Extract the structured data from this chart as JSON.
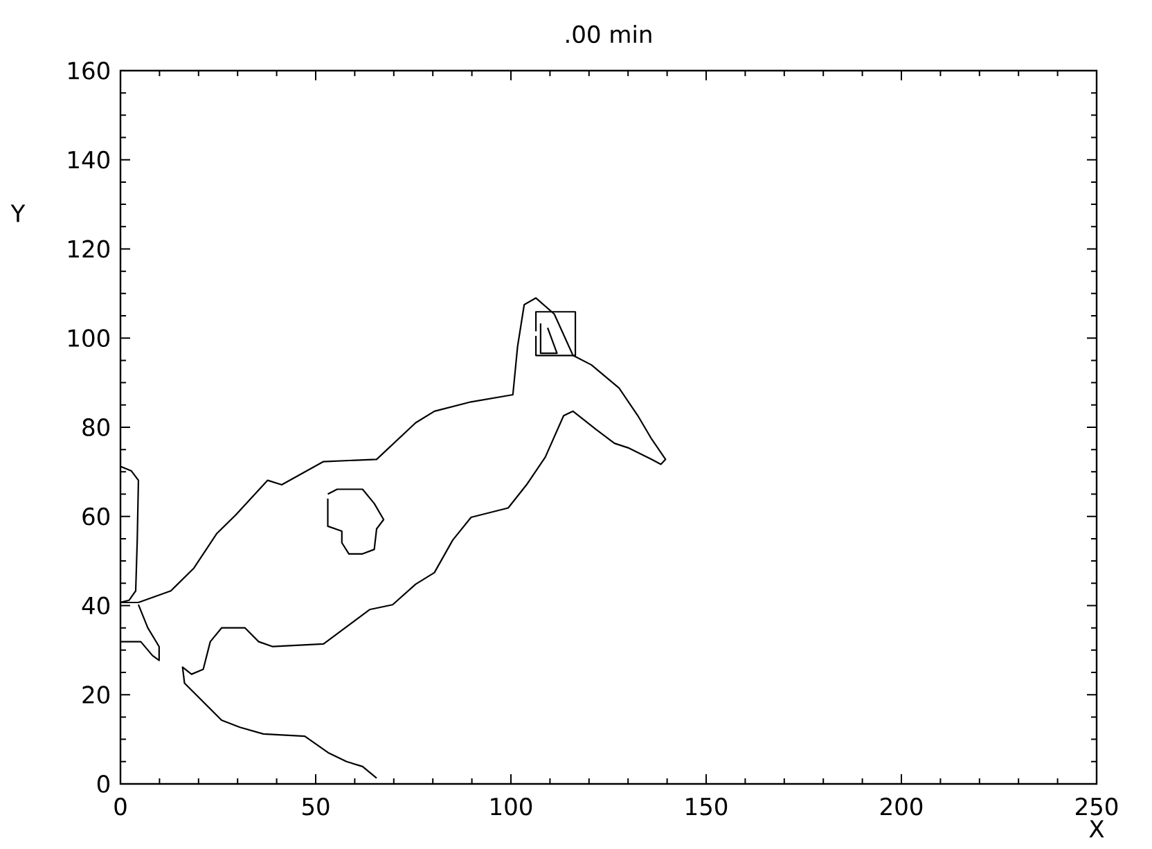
{
  "chart_data": {
    "type": "line",
    "title": ".00 min",
    "xlabel": "X",
    "ylabel": "Y",
    "xlim": [
      0,
      250
    ],
    "ylim": [
      0,
      160
    ],
    "xticks": [
      0,
      50,
      100,
      150,
      200,
      250
    ],
    "yticks": [
      0,
      20,
      40,
      60,
      80,
      100,
      120,
      140,
      160
    ],
    "grid": false,
    "marker": "none",
    "line_style": "solid",
    "series": [
      {
        "color": "#000000",
        "x": [
          0,
          4.6,
          12.9,
          18.8,
          24.7,
          29.5,
          37.7,
          41.3,
          52,
          65.6,
          75.6,
          80.4,
          89.8,
          100.5,
          101.7,
          103.4,
          106.4,
          111.1,
          115.9,
          120.6,
          127.7,
          132.5,
          136,
          139.6,
          138.4,
          136,
          130,
          126.5,
          121.8,
          115.9,
          113.5,
          108.8,
          104,
          99.3,
          89.8,
          85.1,
          80.4,
          75.6,
          69.7,
          63.8,
          52,
          39,
          35.4,
          31.9,
          25.9,
          23,
          21.2,
          18.2,
          15.9,
          16.4,
          21.2,
          25.9,
          30.6,
          36.6,
          47.2,
          53.2,
          57.9,
          62,
          65.6
        ],
        "values": [
          40.7,
          40.7,
          43.3,
          48.4,
          56.2,
          60.3,
          68.1,
          67.1,
          72.3,
          72.8,
          81,
          83.6,
          85.7,
          87.3,
          98.1,
          107.5,
          109,
          105.4,
          96.1,
          94,
          88.8,
          82.6,
          77.4,
          72.8,
          71.7,
          72.8,
          75.4,
          76.4,
          79.5,
          83.6,
          82.6,
          73.3,
          67.1,
          61.9,
          59.8,
          54.7,
          47.4,
          44.8,
          40.2,
          39.1,
          31.4,
          30.8,
          31.9,
          35,
          35,
          31.9,
          25.7,
          24.6,
          26.2,
          22.6,
          18.4,
          14.3,
          12.7,
          11.2,
          10.7,
          7,
          5,
          3.9,
          1.3
        ]
      },
      {
        "color": "#000000",
        "x": [
          0,
          2.8,
          4.6,
          4.3,
          3.9,
          2.2,
          0
        ],
        "values": [
          71.2,
          70.2,
          68.1,
          54.7,
          43.3,
          41.2,
          40.7
        ]
      },
      {
        "color": "#000000",
        "x": [
          0,
          5.2,
          8.2,
          9.9,
          9.9,
          7,
          4.6
        ],
        "values": [
          31.9,
          31.9,
          28.8,
          27.7,
          30.8,
          35,
          40.2
        ]
      },
      {
        "color": "#000000",
        "x": [
          53.1,
          55.5,
          62,
          65,
          67.4,
          65.6,
          65,
          62,
          58.5,
          56.7,
          56.7,
          53.1,
          53.1
        ],
        "values": [
          65,
          66.1,
          66.1,
          62.9,
          59.3,
          57.2,
          52.6,
          51.6,
          51.6,
          54.1,
          56.7,
          57.8,
          64
        ]
      },
      {
        "color": "#000000",
        "x": [
          106.4,
          106.4,
          116.5,
          116.5,
          106.4,
          106.4
        ],
        "values": [
          101.5,
          105.9,
          105.9,
          96.1,
          96.1,
          100.5
        ]
      },
      {
        "color": "#000000",
        "x": [
          107.6,
          107.6,
          111.8,
          109.4
        ],
        "values": [
          103.3,
          96.6,
          96.6,
          102.3
        ]
      }
    ]
  }
}
